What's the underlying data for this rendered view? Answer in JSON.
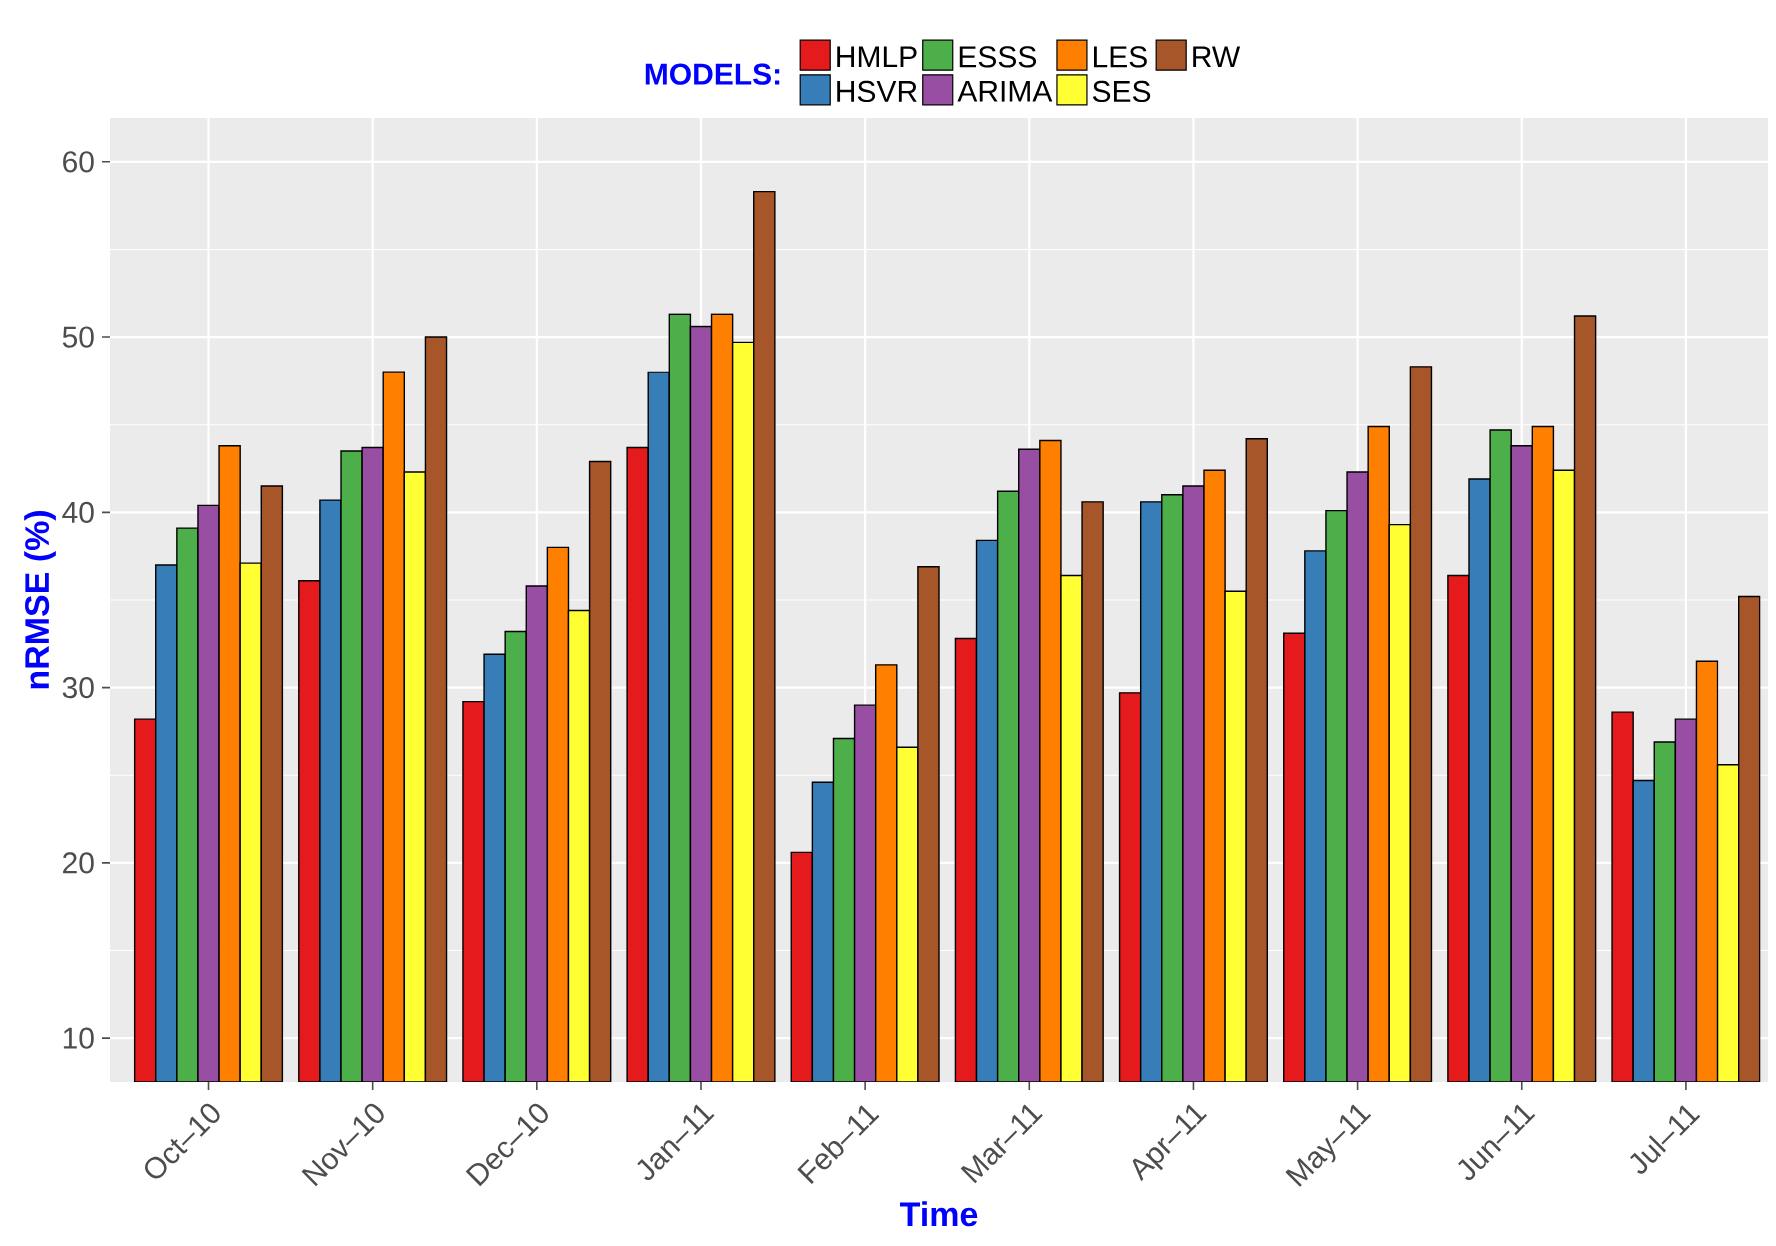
{
  "chart_data": {
    "type": "bar",
    "xlabel": "Time",
    "ylabel": "nRMSE (%)",
    "legend_title": "MODELS:",
    "categories": [
      "Oct–10",
      "Nov–10",
      "Dec–10",
      "Jan–11",
      "Feb–11",
      "Mar–11",
      "Apr–11",
      "May–11",
      "Jun–11",
      "Jul–11"
    ],
    "series": [
      {
        "name": "HMLP",
        "color": "#e41a1c",
        "values": [
          28.2,
          36.1,
          29.2,
          43.7,
          20.6,
          32.8,
          29.7,
          33.1,
          36.4,
          28.6
        ]
      },
      {
        "name": "HSVR",
        "color": "#377eb8",
        "values": [
          37.0,
          40.7,
          31.9,
          48.0,
          24.6,
          38.4,
          40.6,
          37.8,
          41.9,
          24.7
        ]
      },
      {
        "name": "ESSS",
        "color": "#4daf4a",
        "values": [
          39.1,
          43.5,
          33.2,
          51.3,
          27.1,
          41.2,
          41.0,
          40.1,
          44.7,
          26.9
        ]
      },
      {
        "name": "ARIMA",
        "color": "#984ea3",
        "values": [
          40.4,
          43.7,
          35.8,
          50.6,
          29.0,
          43.6,
          41.5,
          42.3,
          43.8,
          28.2
        ]
      },
      {
        "name": "LES",
        "color": "#ff7f00",
        "values": [
          43.8,
          48.0,
          38.0,
          51.3,
          31.3,
          44.1,
          42.4,
          44.9,
          44.9,
          31.5
        ]
      },
      {
        "name": "SES",
        "color": "#ffff33",
        "values": [
          37.1,
          42.3,
          34.4,
          49.7,
          26.6,
          36.4,
          35.5,
          39.3,
          42.4,
          25.6
        ]
      },
      {
        "name": "RW",
        "color": "#a65628",
        "values": [
          41.5,
          50.0,
          42.9,
          58.3,
          36.9,
          40.6,
          44.2,
          48.3,
          51.2,
          35.2
        ]
      }
    ],
    "ylim": [
      7.5,
      62.5
    ],
    "yticks": [
      10,
      20,
      30,
      40,
      50,
      60
    ],
    "grid": true,
    "legend": "top"
  }
}
